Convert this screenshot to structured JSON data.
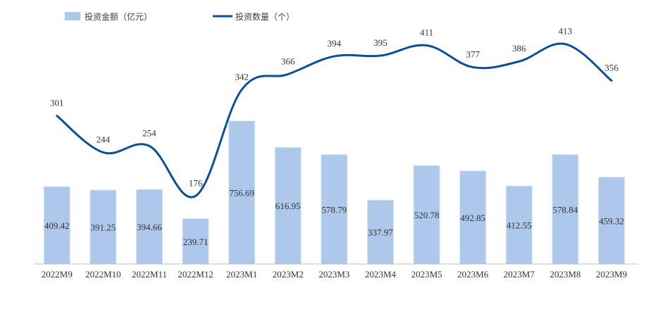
{
  "chart_data": {
    "type": "bar+line",
    "categories": [
      "2022M9",
      "2022M10",
      "2022M11",
      "2022M12",
      "2023M1",
      "2023M2",
      "2023M3",
      "2023M4",
      "2023M5",
      "2023M6",
      "2023M7",
      "2023M8",
      "2023M9"
    ],
    "series": [
      {
        "name": "投资金额（亿元）",
        "type": "bar",
        "color": "#adc8eb",
        "values": [
          409.42,
          391.25,
          394.66,
          239.71,
          756.69,
          616.95,
          578.79,
          337.97,
          520.78,
          492.85,
          412.55,
          578.84,
          459.32
        ],
        "labels": [
          "409.42",
          "391.25",
          "394.66",
          "239.71",
          "756.69",
          "616.95",
          "578.79",
          "337.97",
          "520.78",
          "492.85",
          "412.55",
          "578.84",
          "459.32"
        ]
      },
      {
        "name": "投资数量（个）",
        "type": "line",
        "color": "#0b4f99",
        "values": [
          301,
          244,
          254,
          176,
          342,
          366,
          394,
          395,
          411,
          377,
          386,
          413,
          356
        ],
        "labels": [
          "301",
          "244",
          "254",
          "176",
          "342",
          "366",
          "394",
          "395",
          "411",
          "377",
          "386",
          "413",
          "356"
        ]
      }
    ],
    "legend_position": "top-left",
    "grid": false
  }
}
